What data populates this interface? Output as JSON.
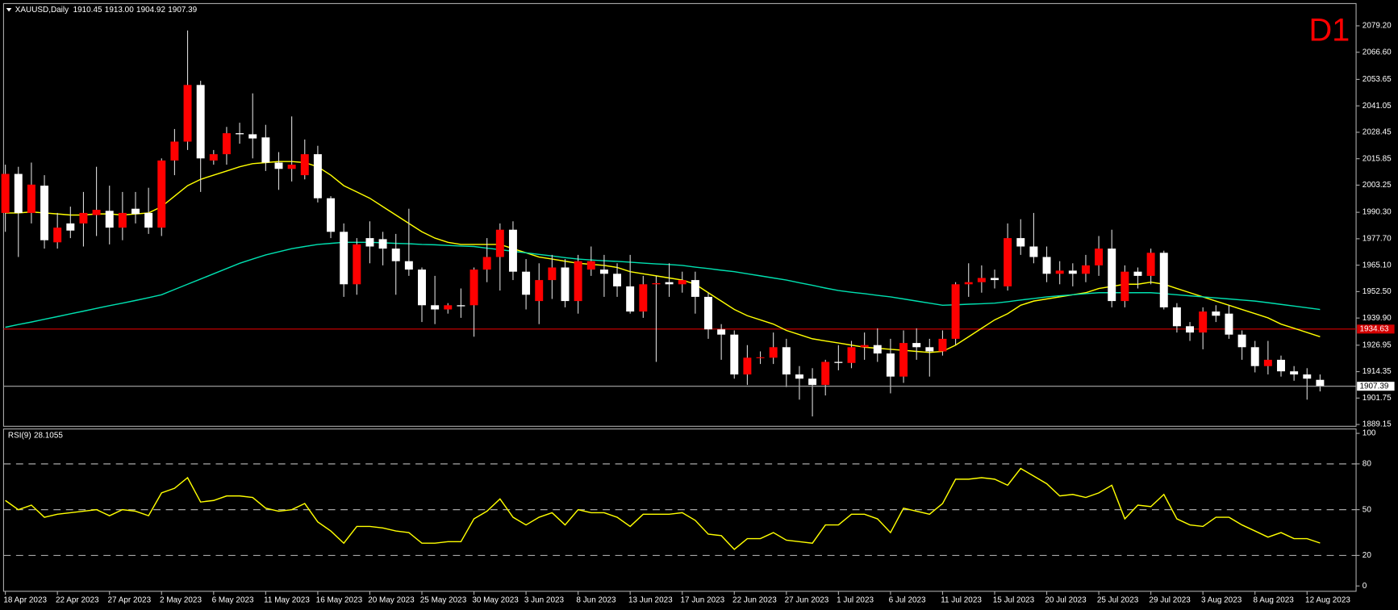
{
  "chart_data": [
    {
      "type": "candlestick",
      "title": "XAUUSD,Daily",
      "last_high_label": "1913.00",
      "annotation": "D1",
      "up_color": "#ff0000",
      "down_color": "#ffffff",
      "wick_color": "#d8d8d8",
      "categories": [
        "18 Apr 2023",
        null,
        null,
        null,
        "22 Apr 2023",
        null,
        null,
        null,
        "27 Apr 2023",
        null,
        null,
        null,
        "2 May 2023",
        null,
        null,
        null,
        "6 May 2023",
        null,
        null,
        null,
        "11 May 2023",
        null,
        null,
        null,
        "16 May 2023",
        null,
        null,
        null,
        "20 May 2023",
        null,
        null,
        null,
        "25 May 2023",
        null,
        null,
        null,
        "30 May 2023",
        null,
        null,
        null,
        "3 Jun 2023",
        null,
        null,
        null,
        "8 Jun 2023",
        null,
        null,
        null,
        "13 Jun 2023",
        null,
        null,
        null,
        "17 Jun 2023",
        null,
        null,
        null,
        "22 Jun 2023",
        null,
        null,
        null,
        "27 Jun 2023",
        null,
        null,
        null,
        "1 Jul 2023",
        null,
        null,
        null,
        "6 Jul 2023",
        null,
        null,
        null,
        "11 Jul 2023",
        null,
        null,
        null,
        "15 Jul 2023",
        null,
        null,
        null,
        "20 Jul 2023",
        null,
        null,
        null,
        "25 Jul 2023",
        null,
        null,
        null,
        "29 Jul 2023",
        null,
        null,
        null,
        "3 Aug 2023",
        null,
        null,
        null,
        "8 Aug 2023",
        null,
        null,
        null,
        "12 Aug 2023",
        null
      ],
      "open": [
        1990,
        2008.6,
        1990,
        2003,
        1976,
        1985,
        1985,
        1989,
        1991,
        1983,
        1992,
        1990,
        1983,
        2015,
        2024,
        2051,
        2015,
        2018,
        2028,
        2027.5,
        2026,
        2014,
        2011,
        2008,
        2018,
        1997,
        1981,
        1956,
        1978,
        1977.5,
        1973,
        1967,
        1963,
        1946,
        1944,
        1946,
        1946,
        1963,
        1969,
        1982,
        1962,
        1948,
        1958,
        1964,
        1948,
        1963,
        1963,
        1961,
        1955,
        1943,
        1956,
        1957,
        1956,
        1958,
        1950,
        1934.5,
        1932,
        1913,
        1921,
        1921,
        1926,
        1913,
        1911,
        1908,
        1919,
        1918.5,
        1926,
        1927,
        1923,
        1912,
        1928,
        1926,
        1924,
        1930,
        1956,
        1957,
        1959,
        1955,
        1978,
        1974,
        1969,
        1961,
        1962.5,
        1961,
        1965,
        1973,
        1948,
        1962,
        1960,
        1971,
        1945,
        1936,
        1933,
        1943,
        1942,
        1932,
        1926,
        1917,
        1920,
        1914.5,
        1913,
        1910.45
      ],
      "high": [
        2013,
        2012,
        2014,
        2008,
        1990,
        1993,
        2000,
        2012,
        2003,
        2000,
        2000,
        2002,
        2016,
        2030,
        2077,
        2053,
        2020,
        2031,
        2033,
        2047,
        2032,
        2019,
        2036,
        2025,
        2022,
        1998,
        1985,
        1978,
        1986,
        1981,
        1980,
        1992,
        1964,
        1960,
        1947,
        1954,
        1964,
        1978,
        1985,
        1986,
        1968,
        1966,
        1970,
        1968,
        1970,
        1974,
        1970,
        1966,
        1970,
        1960,
        1960,
        1966,
        1962,
        1962,
        1952,
        1937,
        1934,
        1927,
        1924,
        1933,
        1930,
        1917,
        1916,
        1920,
        1927,
        1929,
        1933,
        1935,
        1930,
        1934,
        1935,
        1930,
        1934,
        1957,
        1966,
        1965,
        1963,
        1985,
        1987,
        1990,
        1974,
        1967,
        1966,
        1970,
        1979,
        1982,
        1965,
        1964,
        1973,
        1972,
        1947,
        1938,
        1945,
        1946,
        1946,
        1934,
        1929,
        1929,
        1922,
        1917,
        1916,
        1913
      ],
      "low": [
        1981,
        1969,
        1985,
        1973,
        1973,
        1978,
        1974,
        1979,
        1975,
        1977,
        1985,
        1980,
        1979,
        2008,
        2020,
        2000,
        2013,
        2013,
        2023,
        2016,
        2010,
        2001,
        2005,
        2006,
        1995,
        1978,
        1950,
        1951,
        1966,
        1965,
        1951,
        1960,
        1938,
        1937,
        1942,
        1940,
        1931,
        1957,
        1953,
        1958,
        1944,
        1937,
        1949,
        1945,
        1942,
        1960,
        1950,
        1950,
        1942,
        1940,
        1919,
        1950,
        1952,
        1942,
        1930,
        1920,
        1911,
        1908,
        1918,
        1918,
        1907,
        1901,
        1893,
        1903,
        1915,
        1916,
        1920,
        1919,
        1904,
        1909,
        1920,
        1912,
        1922,
        1927,
        1950,
        1952,
        1954,
        1953,
        1970,
        1966,
        1957,
        1956,
        1955,
        1957,
        1960,
        1945,
        1945,
        1954,
        1956,
        1944,
        1933,
        1929,
        1925,
        1938,
        1930,
        1920,
        1914,
        1913,
        1912,
        1910,
        1901,
        1904.92
      ],
      "close": [
        2008.6,
        1990,
        2003.5,
        1977,
        1983,
        1981.6,
        1990,
        1991.5,
        1983,
        1990,
        1989.5,
        1983,
        2015,
        2024,
        2051,
        2016,
        2018,
        2028,
        2027.5,
        2025.5,
        2014,
        2011,
        2013,
        2018,
        1997,
        1981,
        1956,
        1975,
        1974,
        1973,
        1967,
        1963,
        1946,
        1944,
        1946,
        1945.5,
        1963,
        1969,
        1982,
        1962,
        1951,
        1958,
        1964,
        1948,
        1967,
        1967,
        1961,
        1955,
        1943,
        1956,
        1956.5,
        1956,
        1958,
        1950,
        1934.5,
        1932,
        1913,
        1921,
        1921.2,
        1926,
        1913,
        1911,
        1908,
        1919,
        1918.5,
        1926,
        1927,
        1923,
        1912,
        1928,
        1926,
        1924,
        1930,
        1956,
        1957,
        1959,
        1958,
        1978,
        1974,
        1969,
        1961,
        1962.5,
        1961,
        1965,
        1973,
        1948,
        1962,
        1960,
        1971,
        1945,
        1936,
        1933,
        1943,
        1941,
        1932,
        1926,
        1917,
        1920,
        1914.5,
        1913,
        1911,
        1907.39
      ],
      "lines": [
        {
          "color": "#ffff00",
          "values": [
            1990,
            1990,
            1990.5,
            1990,
            1989.5,
            1989,
            1989,
            1989.5,
            1989.5,
            1989,
            1989.5,
            1990,
            1993,
            1998,
            2003,
            2006,
            2008,
            2010,
            2012,
            2013.5,
            2014,
            2014.5,
            2014.5,
            2014,
            2012,
            2008,
            2003,
            2000,
            1997,
            1993,
            1989,
            1985,
            1981,
            1978,
            1976,
            1975,
            1975,
            1975,
            1975,
            1973,
            1971,
            1969,
            1968,
            1967,
            1966,
            1965.5,
            1965,
            1964,
            1962,
            1961,
            1960,
            1959,
            1958,
            1956,
            1952,
            1948,
            1944,
            1941,
            1939,
            1937,
            1934,
            1932,
            1930,
            1929,
            1928,
            1927,
            1926,
            1925.5,
            1925,
            1924.5,
            1924,
            1923.5,
            1924,
            1927,
            1931,
            1935,
            1939,
            1942,
            1946,
            1948,
            1949,
            1950,
            1951,
            1952,
            1954,
            1955,
            1956,
            1956,
            1957,
            1956,
            1954,
            1952,
            1950,
            1948,
            1946,
            1944,
            1942,
            1940,
            1937,
            1935,
            1933,
            1931
          ]
        },
        {
          "color": "#00e0b0",
          "values": [
            1935.5,
            1936.8,
            1938,
            1939.3,
            1940.6,
            1941.9,
            1943.2,
            1944.5,
            1945.8,
            1947,
            1948.3,
            1949.6,
            1951,
            1953.5,
            1956,
            1958.5,
            1961,
            1963.5,
            1966,
            1968,
            1970,
            1971.5,
            1973,
            1974,
            1975,
            1975.5,
            1976,
            1976,
            1976,
            1975.8,
            1975.5,
            1975.3,
            1975,
            1974.8,
            1974.5,
            1974.2,
            1974,
            1973.2,
            1972.5,
            1971.7,
            1971,
            1970.2,
            1969.5,
            1968.7,
            1968,
            1967.6,
            1967.2,
            1966.9,
            1966.5,
            1966.1,
            1965.7,
            1965.4,
            1965,
            1964.2,
            1963.5,
            1962.7,
            1962,
            1961,
            1960,
            1959,
            1958,
            1956.7,
            1955.5,
            1954.2,
            1953,
            1952.2,
            1951.5,
            1950.7,
            1950,
            1949,
            1948,
            1947,
            1946,
            1946.2,
            1946.5,
            1946.7,
            1947,
            1947.7,
            1948.5,
            1949.2,
            1950,
            1950.5,
            1951,
            1951.5,
            1952,
            1952,
            1952,
            1952,
            1952,
            1951.5,
            1951,
            1950.5,
            1950,
            1949.5,
            1949,
            1948.5,
            1948,
            1947.2,
            1946.4,
            1945.6,
            1944.8,
            1944
          ]
        }
      ],
      "hlines": [
        {
          "value": 1934.63,
          "color": "#d40000"
        }
      ],
      "ylim": [
        1888.3,
        2088.1
      ],
      "yticks": [
        {
          "value": 2079.2,
          "label": "2079.20"
        },
        {
          "value": 2066.6,
          "label": "2066.60"
        },
        2053.65,
        {
          "value": 2041.05,
          "label": "2041.05"
        },
        {
          "value": 2028.45,
          "label": "2028.45"
        },
        {
          "value": 2015.85,
          "label": "2015.85"
        },
        {
          "value": 2003.25,
          "label": "2003.25"
        },
        {
          "value": 1990.3,
          "label": "1990.30"
        },
        {
          "value": 1977.7,
          "label": "1977.70"
        },
        {
          "value": 1965.1,
          "label": "1965.10"
        },
        {
          "value": 1952.5,
          "label": "1952.50"
        },
        {
          "value": 1939.9,
          "label": "1939.90"
        },
        1926.95,
        1914.35,
        1901.75,
        1889.15
      ]
    },
    {
      "type": "line",
      "title": "RSI(9)",
      "series": [
        {
          "color": "#ffff00",
          "values": [
            56,
            50,
            53,
            45,
            47,
            48,
            49,
            50,
            46,
            50,
            49,
            46,
            61,
            64,
            71,
            55,
            56,
            59,
            59,
            58,
            51,
            49,
            50,
            54,
            42,
            36,
            28,
            39,
            39,
            38,
            36,
            35,
            28,
            28,
            29,
            29,
            44,
            49,
            57,
            45,
            40,
            45,
            48,
            40,
            50,
            48,
            48,
            45,
            39,
            47,
            47,
            47,
            48,
            43,
            34,
            33,
            24,
            31,
            31,
            35,
            30,
            29,
            28,
            40,
            40,
            47,
            47,
            44,
            35,
            51,
            49,
            47,
            54,
            70,
            70,
            71,
            70,
            66,
            77,
            72,
            67,
            59,
            60,
            58,
            61,
            66,
            44,
            53,
            52,
            60,
            44,
            40,
            39,
            45,
            45,
            40,
            36,
            32,
            35,
            31,
            31,
            28.1055
          ]
        }
      ],
      "ylim": [
        -2.9,
        102.3
      ],
      "yticks": [
        0,
        20,
        50,
        80,
        100
      ],
      "levels": [
        20,
        50,
        80
      ]
    }
  ]
}
